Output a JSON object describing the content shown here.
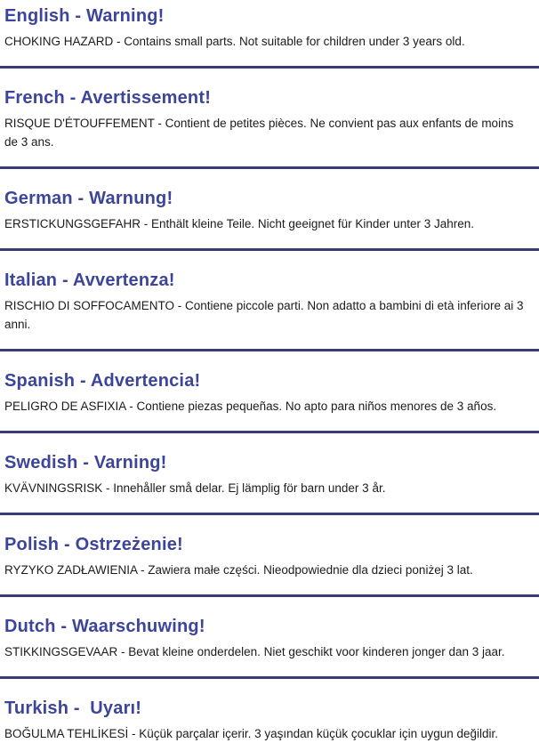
{
  "page": {
    "kind": "multilingual-choking-hazard-warning-label",
    "background_color": "#ffffff",
    "heading_color": "#3c459a",
    "body_text_color": "#1b1b1b",
    "divider_color": "#3a3a78"
  },
  "sections": [
    {
      "language": "English",
      "heading": "English - Warning!",
      "body": "CHOKING HAZARD - Contains small parts. Not suitable for children under 3 years old."
    },
    {
      "language": "French",
      "heading": "French - Avertissement!",
      "body": "RISQUE D'ÉTOUFFEMENT - Contient de petites pièces. Ne convient pas aux enfants de moins de 3 ans."
    },
    {
      "language": "German",
      "heading": "German - Warnung!",
      "body": "ERSTICKUNGSGEFAHR - Enthält kleine Teile. Nicht geeignet für Kinder unter 3 Jahren."
    },
    {
      "language": "Italian",
      "heading": "Italian - Avvertenza!",
      "body": "RISCHIO DI SOFFOCAMENTO - Contiene piccole parti. Non adatto a bambini di età inferiore ai 3 anni."
    },
    {
      "language": "Spanish",
      "heading": "Spanish - Advertencia!",
      "body": "PELIGRO DE ASFIXIA - Contiene piezas pequeñas. No apto para niños menores de 3 años."
    },
    {
      "language": "Swedish",
      "heading": "Swedish - Varning!",
      "body": "KVÄVNINGSRISK - Innehåller små delar. Ej lämplig för barn under 3 år."
    },
    {
      "language": "Polish",
      "heading": "Polish - Ostrzeżenie!",
      "body": "RYZYKO ZADŁAWIENIA - Zawiera małe części. Nieodpowiednie dla dzieci poniżej 3 lat."
    },
    {
      "language": "Dutch",
      "heading": "Dutch - Waarschuwing!",
      "body": "STIKKINGSGEVAAR - Bevat kleine onderdelen. Niet geschikt voor kinderen jonger dan 3 jaar."
    },
    {
      "language": "Turkish",
      "heading": "Turkish -  Uyarı!",
      "body": "BOĞULMA TEHLİKESİ - Küçük parçalar içerir. 3 yaşından küçük çocuklar için uygun değildir."
    }
  ]
}
